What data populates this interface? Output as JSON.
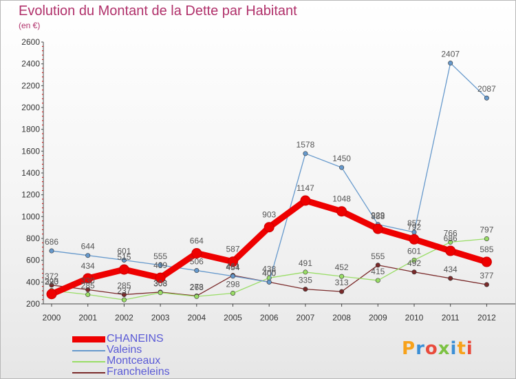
{
  "header": {
    "title": "Evolution du Montant de la Dette par Habitant",
    "unit": "(en €)"
  },
  "logo": {
    "text": "Proxiti",
    "colors": [
      "#f7a21b",
      "#3b8fd6",
      "#e94b3c",
      "#7cc242",
      "#3b8fd6",
      "#f7a21b",
      "#e94b3c"
    ]
  },
  "chart_data": {
    "type": "line",
    "title": "Evolution du Montant de la Dette par Habitant",
    "subtitle": "(en €)",
    "x": [
      "2000",
      "2001",
      "2002",
      "2003",
      "2004",
      "2005",
      "2006",
      "2007",
      "2008",
      "2009",
      "2010",
      "2011",
      "2012"
    ],
    "ylim": [
      200,
      2600
    ],
    "yticks": [
      200,
      400,
      600,
      800,
      1000,
      1200,
      1400,
      1600,
      1800,
      2000,
      2200,
      2400,
      2600
    ],
    "grid": false,
    "legend_position": "bottom-left",
    "series": [
      {
        "name": "CHANEINS",
        "color": "#ee0000",
        "values": [
          290,
          434,
          515,
          439,
          664,
          587,
          903,
          1147,
          1048,
          888,
          792,
          686,
          585
        ]
      },
      {
        "name": "Valeins",
        "color": "#6699cc",
        "values": [
          686,
          644,
          601,
          555,
          506,
          454,
          400,
          1578,
          1450,
          929,
          857,
          2407,
          2087
        ]
      },
      {
        "name": "Montceaux",
        "color": "#99dd66",
        "values": [
          323,
          285,
          237,
          303,
          268,
          298,
          438,
          491,
          452,
          415,
          601,
          766,
          797
        ]
      },
      {
        "name": "Francheleins",
        "color": "#7a2a2a",
        "values": [
          372,
          330,
          285,
          308,
          273,
          461,
          400,
          335,
          313,
          555,
          492,
          434,
          377
        ]
      }
    ]
  }
}
